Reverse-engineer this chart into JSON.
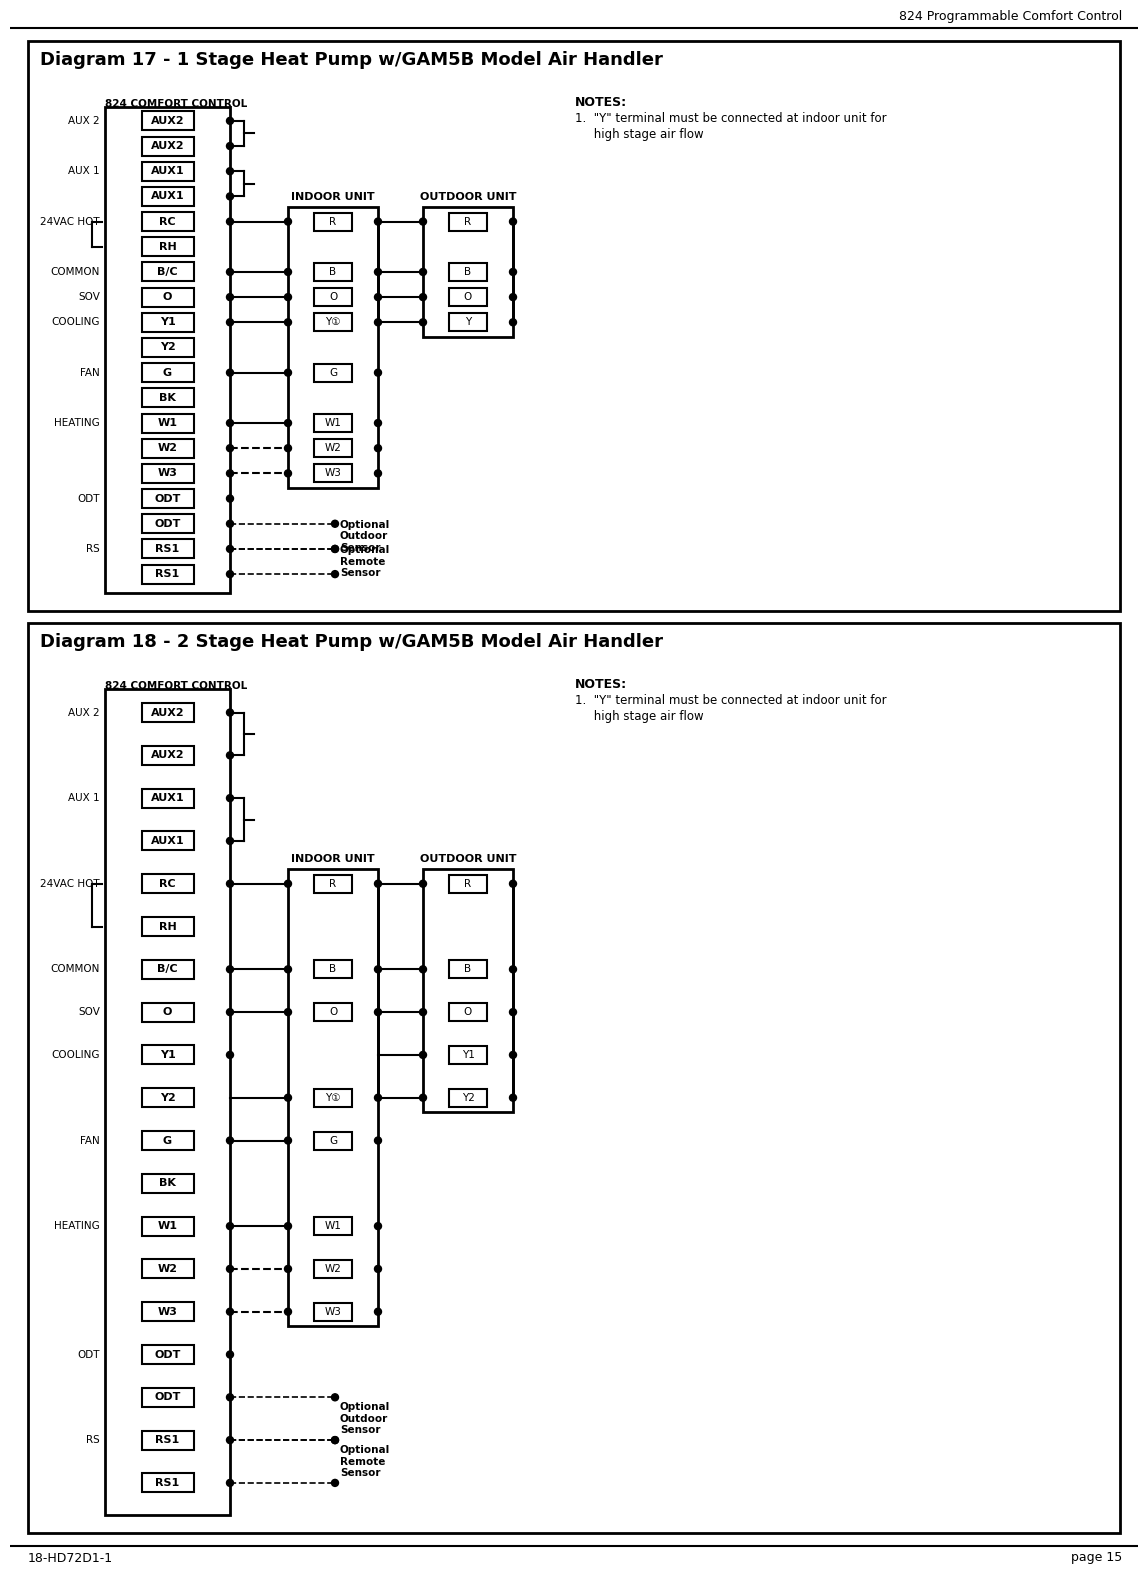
{
  "page_title": "824 Programmable Comfort Control",
  "footer_left": "18-HD72D1-1",
  "footer_right": "page 15",
  "diagram1_title": "Diagram 17 - 1 Stage Heat Pump w/GAM5B Model Air Handler",
  "diagram2_title": "Diagram 18 - 2 Stage Heat Pump w/GAM5B Model Air Handler",
  "comfort_control_label": "824 COMFORT CONTROL",
  "indoor_unit_label": "INDOOR UNIT",
  "outdoor_unit_label": "OUTDOOR UNIT",
  "notes_title": "NOTES:",
  "notes_text_1": "1.  \"Y\" terminal must be connected at indoor unit for",
  "notes_text_2": "     high stage air flow",
  "bg_color": "#ffffff",
  "box_color": "#000000",
  "text_color": "#000000"
}
